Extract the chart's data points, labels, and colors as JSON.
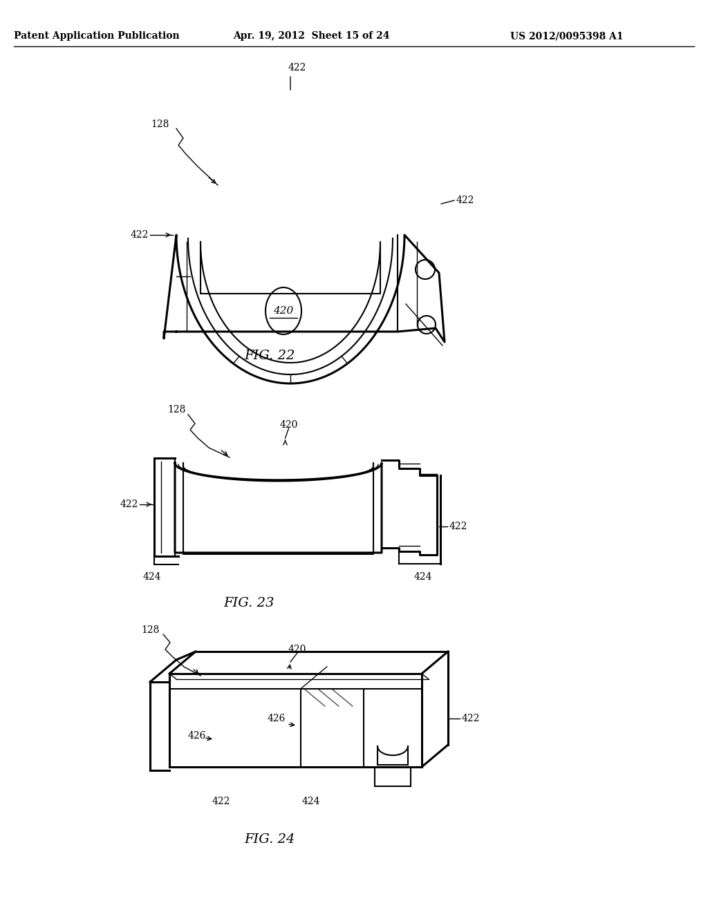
{
  "title_left": "Patent Application Publication",
  "title_mid": "Apr. 19, 2012  Sheet 15 of 24",
  "title_right": "US 2012/0095398 A1",
  "fig22_label": "FIG. 22",
  "fig23_label": "FIG. 23",
  "fig24_label": "FIG. 24",
  "bg_color": "#ffffff",
  "line_color": "#000000",
  "lw_thin": 1.0,
  "lw_main": 1.5,
  "lw_thick": 2.2,
  "font_size_header": 10,
  "font_size_label": 10,
  "font_size_fig": 14
}
